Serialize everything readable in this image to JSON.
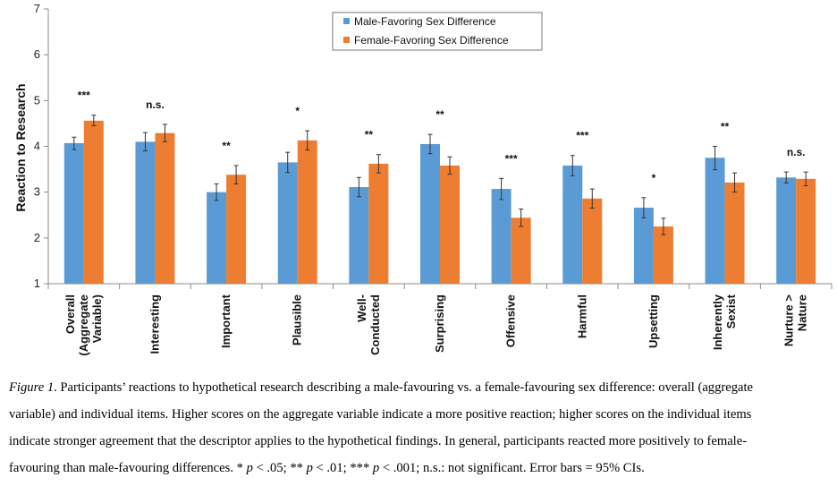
{
  "chart_data": {
    "type": "bar",
    "title": "",
    "xlabel": "",
    "ylabel": "Reaction to Research",
    "ylim": [
      1,
      7
    ],
    "yticks": [
      "1",
      "2",
      "3",
      "4",
      "5",
      "6",
      "7"
    ],
    "legend_position": "top-center",
    "categories": [
      [
        "Overall",
        "(Aggregate",
        "Variable)"
      ],
      [
        "Interesting"
      ],
      [
        "Important"
      ],
      [
        "Plausible"
      ],
      [
        "Well-",
        "Conducted"
      ],
      [
        "Surprising"
      ],
      [
        "Offensive"
      ],
      [
        "Harmful"
      ],
      [
        "Upsetting"
      ],
      [
        "Inherently",
        "Sexist"
      ],
      [
        "Nurture >",
        "Nature"
      ]
    ],
    "significance": [
      "***",
      "n.s.",
      "**",
      "*",
      "**",
      "**",
      "***",
      "***",
      "*",
      "**",
      "n.s."
    ],
    "series": [
      {
        "name": "Male-Favoring Sex Difference",
        "color": "#5B9BD5",
        "values": [
          4.07,
          4.1,
          3.0,
          3.65,
          3.11,
          4.05,
          3.07,
          3.58,
          2.66,
          3.75,
          3.32
        ],
        "ci_low": [
          3.93,
          3.9,
          2.82,
          3.43,
          2.9,
          3.84,
          2.84,
          3.36,
          2.44,
          3.49,
          3.2
        ],
        "ci_high": [
          4.2,
          4.3,
          3.18,
          3.87,
          3.32,
          4.26,
          3.3,
          3.8,
          2.88,
          4.0,
          3.44
        ]
      },
      {
        "name": "Female-Favoring Sex Difference",
        "color": "#ED7D31",
        "values": [
          4.56,
          4.29,
          3.38,
          4.13,
          3.62,
          3.58,
          2.44,
          2.86,
          2.25,
          3.21,
          3.29
        ],
        "ci_low": [
          4.45,
          4.1,
          3.18,
          3.92,
          3.42,
          3.39,
          2.25,
          2.65,
          2.07,
          3.0,
          3.14
        ],
        "ci_high": [
          4.68,
          4.48,
          3.58,
          4.34,
          3.82,
          3.77,
          2.63,
          3.07,
          2.43,
          3.42,
          3.44
        ]
      }
    ]
  },
  "caption": {
    "figure_label": "Figure 1",
    "line1_rest": ". Participants’ reactions to hypothetical research describing a male-favouring vs. a female-favouring sex difference: overall (aggregate",
    "line2": "variable) and individual items. Higher scores on the aggregate variable indicate a more positive reaction; higher scores on the individual items",
    "line3": "indicate stronger agreement that the descriptor applies to the hypothetical findings. In general, participants reacted more positively to female-",
    "line4_a": "favouring than male-favouring differences. * ",
    "p": "p",
    "line4_b": " < .05; ** ",
    "line4_c": " < .01; *** ",
    "line4_d": " < .001; n.s.: not significant. Error bars = 95% CIs."
  }
}
